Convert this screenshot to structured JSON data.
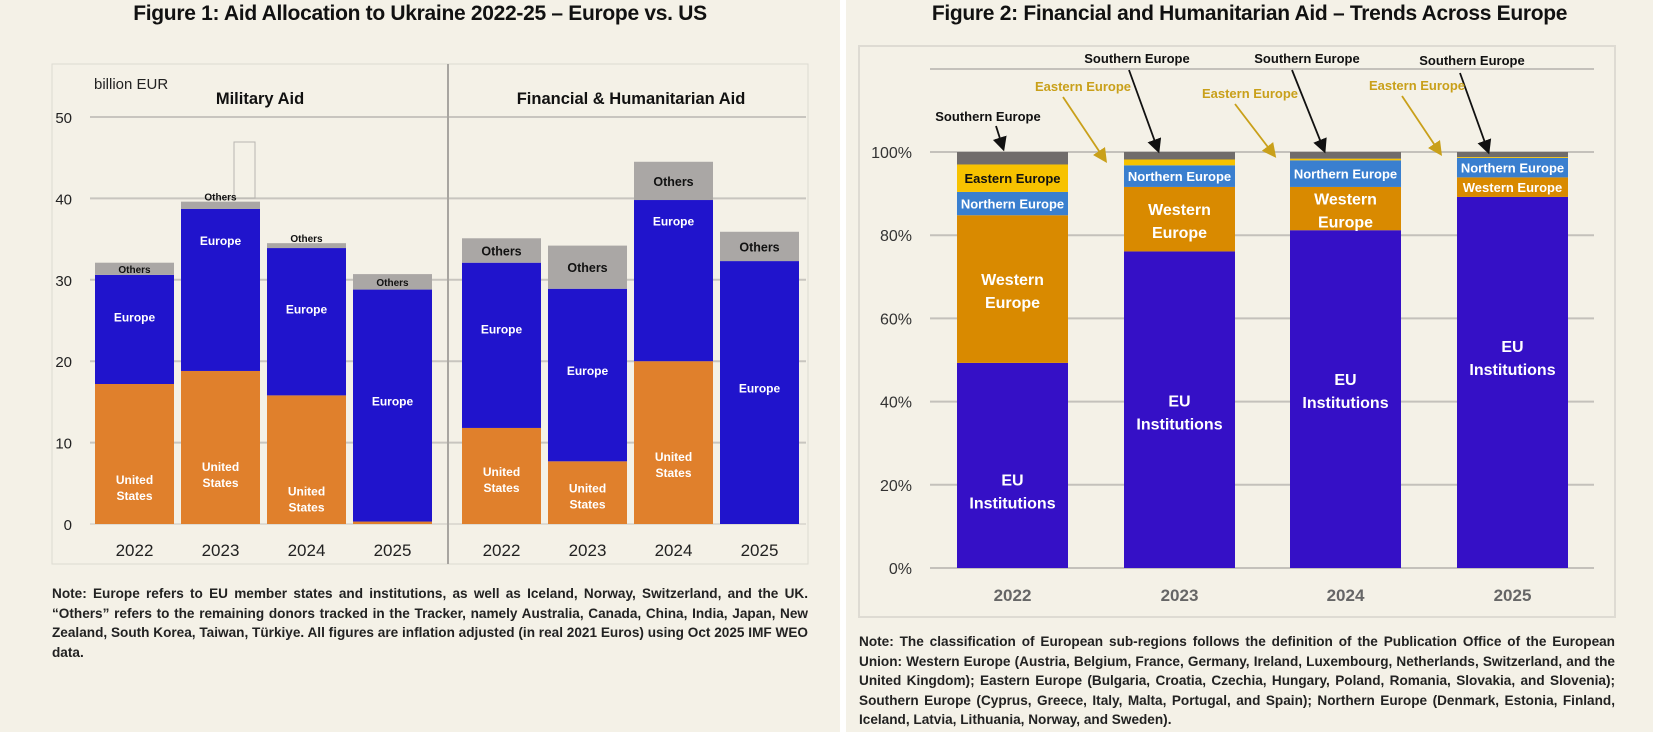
{
  "figure1": {
    "title": "Figure 1: Aid Allocation to Ukraine 2022-25 – Europe vs. US",
    "unit_label": "billion EUR",
    "note": "Note: Europe refers to EU member states and institutions, as well as Iceland, Norway, Switzerland, and the UK. “Others” refers to the remaining donors tracked in the Tracker, namely Australia, Canada, China, India, Japan, New Zealand, South Korea, Taiwan, Türkiye. All figures are inflation adjusted (in real 2021 Euros) using Oct 2025 IMF WEO data."
  },
  "figure2": {
    "title": "Figure 2: Financial and Humanitarian Aid – Trends Across Europe",
    "note": "Note: The classification of European sub-regions follows the definition of the Publication Office of the European Union: Western Europe (Austria, Belgium, France, Germany, Ireland, Luxembourg, Netherlands, Switzerland, and the United Kingdom); Eastern Europe (Bulgaria, Croatia, Czechia, Hungary, Poland, Romania, Slovakia, and Slovenia); Southern Europe (Cyprus, Greece, Italy, Malta, Portugal, and Spain); Northern Europe (Denmark, Estonia, Finland, Iceland, Latvia, Lithuania, Norway, and Sweden)."
  },
  "colors": {
    "us": "#e0802c",
    "europe": "#2014cc",
    "others": "#aaa7a5",
    "eu_institutions": "#3510c6",
    "western": "#d98a00",
    "northern": "#3a7fcf",
    "eastern": "#f7c200",
    "southern": "#706c6b",
    "eastern_annotation": "#c9a01a"
  },
  "chart_data": [
    {
      "type": "bar",
      "stacked": true,
      "title": "Figure 1: Aid Allocation to Ukraine 2022-25 – Europe vs. US",
      "ylabel": "billion EUR",
      "ylim": [
        0,
        50
      ],
      "yticks": [
        0,
        10,
        20,
        30,
        40,
        50
      ],
      "grid": true,
      "panels": [
        {
          "title": "Military Aid",
          "categories": [
            "2022",
            "2023",
            "2024",
            "2025"
          ],
          "series": [
            {
              "name": "United States",
              "label": "United States",
              "values": [
                17.2,
                18.8,
                15.8,
                0.3
              ]
            },
            {
              "name": "Europe",
              "label": "Europe",
              "values": [
                13.4,
                19.9,
                18.1,
                28.5
              ]
            },
            {
              "name": "Others",
              "label": "Others",
              "values": [
                1.5,
                0.9,
                0.6,
                1.9
              ]
            }
          ]
        },
        {
          "title": "Financial & Humanitarian Aid",
          "categories": [
            "2022",
            "2023",
            "2024",
            "2025"
          ],
          "series": [
            {
              "name": "United States",
              "label": "United States",
              "values": [
                11.8,
                7.7,
                20.0,
                0.0
              ]
            },
            {
              "name": "Europe",
              "label": "Europe",
              "values": [
                20.3,
                21.2,
                19.8,
                32.3
              ]
            },
            {
              "name": "Others",
              "label": "Others",
              "values": [
                3.0,
                5.3,
                4.7,
                3.6
              ]
            }
          ]
        }
      ]
    },
    {
      "type": "bar",
      "stacked": true,
      "percent": true,
      "title": "Figure 2: Financial and Humanitarian Aid – Trends Across Europe",
      "ylim": [
        0,
        100
      ],
      "yticks": [
        "0%",
        "20%",
        "40%",
        "60%",
        "80%",
        "100%"
      ],
      "grid": true,
      "categories": [
        "2022",
        "2023",
        "2024",
        "2025"
      ],
      "series": [
        {
          "name": "EU Institutions",
          "values": [
            49.3,
            76.1,
            81.2,
            89.2
          ]
        },
        {
          "name": "Western Europe",
          "values": [
            35.5,
            15.5,
            10.4,
            4.7
          ]
        },
        {
          "name": "Northern Europe",
          "values": [
            5.6,
            5.2,
            6.4,
            4.7
          ]
        },
        {
          "name": "Eastern Europe",
          "values": [
            6.6,
            1.4,
            0.4,
            0.2
          ]
        },
        {
          "name": "Southern Europe",
          "values": [
            3.0,
            1.8,
            1.6,
            1.2
          ]
        }
      ],
      "annotations": [
        {
          "text": "Southern Europe",
          "category": "2022"
        },
        {
          "text": "Southern Europe",
          "category": "2023"
        },
        {
          "text": "Eastern Europe",
          "category": "2023"
        },
        {
          "text": "Southern Europe",
          "category": "2024"
        },
        {
          "text": "Eastern Europe",
          "category": "2024"
        },
        {
          "text": "Southern Europe",
          "category": "2025"
        },
        {
          "text": "Eastern Europe",
          "category": "2025"
        }
      ]
    }
  ]
}
